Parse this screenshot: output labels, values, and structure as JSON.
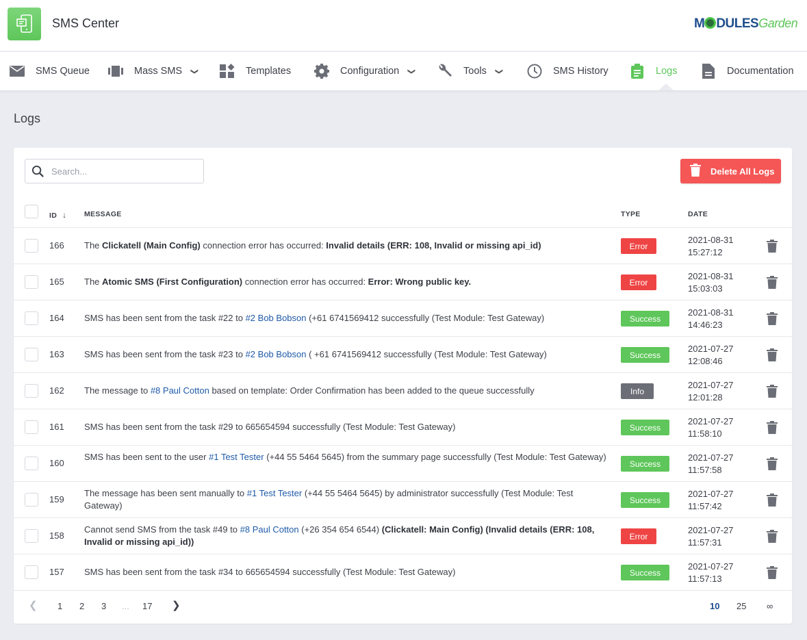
{
  "header": {
    "title": "SMS Center",
    "logo_text": "MODULESGarden",
    "logo_bold": "M",
    "logo_bold2": "DULES",
    "logo_light": "Garden"
  },
  "nav": [
    {
      "label": "SMS Queue",
      "icon": "envelope-icon"
    },
    {
      "label": "Mass SMS",
      "icon": "columns-icon",
      "dropdown": true
    },
    {
      "label": "Templates",
      "icon": "widgets-icon"
    },
    {
      "label": "Configuration",
      "icon": "gear-icon",
      "dropdown": true
    },
    {
      "label": "Tools",
      "icon": "wrench-icon",
      "dropdown": true
    },
    {
      "label": "SMS History",
      "icon": "clock-icon"
    },
    {
      "label": "Logs",
      "icon": "clipboard-icon",
      "active": true
    },
    {
      "label": "Documentation",
      "icon": "document-icon"
    }
  ],
  "page": {
    "title": "Logs"
  },
  "toolbar": {
    "search_placeholder": "Search...",
    "search_value": "",
    "delete_all_label": "Delete All Logs"
  },
  "table": {
    "columns": {
      "id": "ID",
      "message": "MESSAGE",
      "type": "TYPE",
      "date": "DATE"
    },
    "sort": {
      "column": "ID",
      "direction": "desc"
    },
    "rows": [
      {
        "id": "166",
        "type": "Error",
        "date": "2021-08-31",
        "time": "15:27:12",
        "message": [
          {
            "t": "The "
          },
          {
            "t": "Clickatell (Main Config)",
            "s": "b"
          },
          {
            "t": " connection error has occurred: "
          },
          {
            "t": "Invalid details (ERR: 108, Invalid or missing api_id)",
            "s": "b"
          }
        ]
      },
      {
        "id": "165",
        "type": "Error",
        "date": "2021-08-31",
        "time": "15:03:03",
        "message": [
          {
            "t": "The "
          },
          {
            "t": "Atomic SMS (First Configuration)",
            "s": "b"
          },
          {
            "t": " connection error has occurred: "
          },
          {
            "t": "Error: Wrong public key.",
            "s": "b"
          }
        ]
      },
      {
        "id": "164",
        "type": "Success",
        "date": "2021-08-31",
        "time": "14:46:23",
        "message": [
          {
            "t": "SMS has been sent from the task #22 to "
          },
          {
            "t": "#2 Bob Bobson",
            "s": "a"
          },
          {
            "t": " (+61 6741569412 successfully (Test Module: Test Gateway)"
          }
        ]
      },
      {
        "id": "163",
        "type": "Success",
        "date": "2021-07-27",
        "time": "12:08:46",
        "message": [
          {
            "t": "SMS has been sent from the task #23 to "
          },
          {
            "t": "#2 Bob Bobson",
            "s": "a"
          },
          {
            "t": " ( +61 6741569412 successfully (Test Module: Test Gateway)"
          }
        ]
      },
      {
        "id": "162",
        "type": "Info",
        "date": "2021-07-27",
        "time": "12:01:28",
        "message": [
          {
            "t": "The message to "
          },
          {
            "t": "#8 Paul Cotton",
            "s": "a"
          },
          {
            "t": " based on template: Order Confirmation has been added to the queue successfully"
          }
        ]
      },
      {
        "id": "161",
        "type": "Success",
        "date": "2021-07-27",
        "time": "11:58:10",
        "message": [
          {
            "t": "SMS has been sent from the task #29 to 665654594 successfully (Test Module: Test Gateway)"
          }
        ]
      },
      {
        "id": "160",
        "type": "Success",
        "date": "2021-07-27",
        "time": "11:57:58",
        "message": [
          {
            "t": "SMS has been sent to the user "
          },
          {
            "t": "#1 Test Tester",
            "s": "a"
          },
          {
            "t": " (+44 55 5464 5645) from the summary page successfully (Test Module: Test Gateway)"
          }
        ]
      },
      {
        "id": "159",
        "type": "Success",
        "date": "2021-07-27",
        "time": "11:57:42",
        "message": [
          {
            "t": "The message has been sent manually to "
          },
          {
            "t": "#1 Test Tester",
            "s": "a"
          },
          {
            "t": " (+44 55 5464 5645) by administrator successfully (Test Module: Test Gateway)"
          }
        ]
      },
      {
        "id": "158",
        "type": "Error",
        "date": "2021-07-27",
        "time": "11:57:31",
        "message": [
          {
            "t": "Cannot send SMS from the task #49 to "
          },
          {
            "t": "#8 Paul Cotton",
            "s": "a"
          },
          {
            "t": " (+26 354 654 6544) "
          },
          {
            "t": "(Clickatell: Main Config) (Invalid details (ERR: 108, Invalid or missing api_id))",
            "s": "b"
          }
        ]
      },
      {
        "id": "157",
        "type": "Success",
        "date": "2021-07-27",
        "time": "11:57:13",
        "message": [
          {
            "t": "SMS has been sent from the task #34 to 665654594 successfully (Test Module: Test Gateway)"
          }
        ]
      }
    ]
  },
  "badge_colors": {
    "Error": "#ef4444",
    "Success": "#5ec65a",
    "Info": "#6b6e76"
  },
  "pagination": {
    "pages": [
      "1",
      "2",
      "3",
      "...",
      "17"
    ],
    "current": "1",
    "page_sizes": [
      "10",
      "25",
      "∞"
    ],
    "current_size": "10"
  },
  "colors": {
    "accent": "#5ec65a",
    "danger": "#f55656",
    "link": "#1e5aa8"
  }
}
